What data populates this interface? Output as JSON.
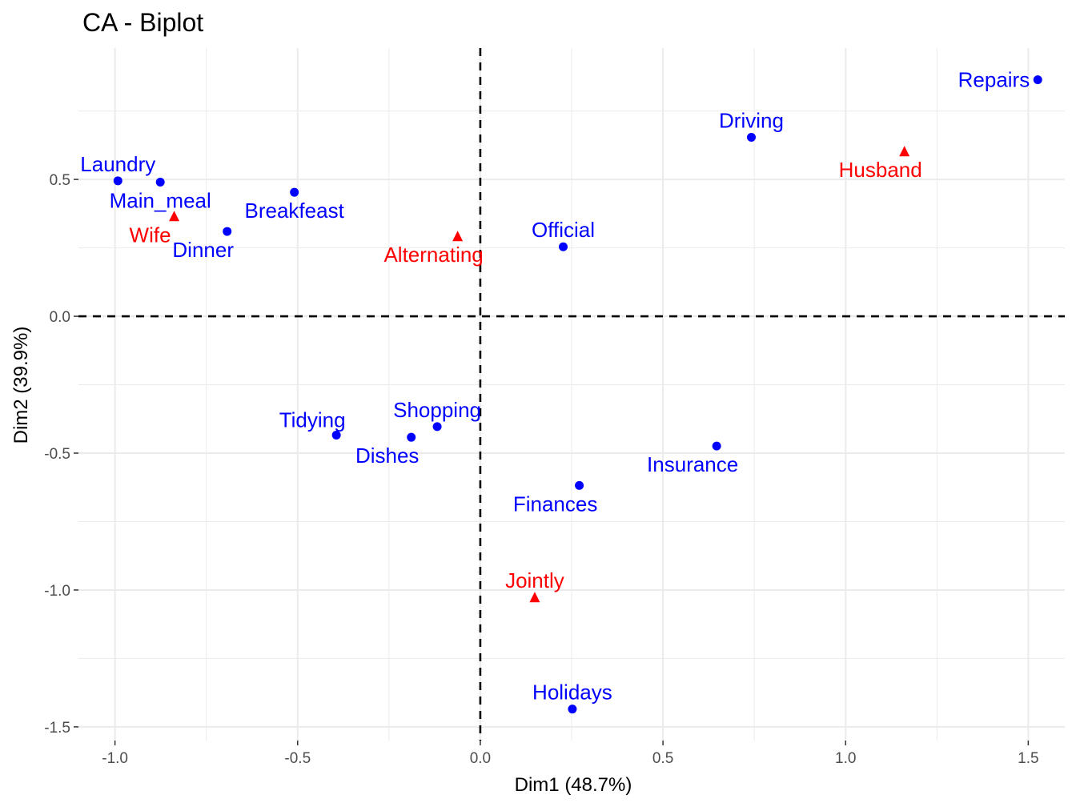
{
  "chart_data": {
    "type": "scatter",
    "title": "CA - Biplot",
    "xlabel": "Dim1 (48.7%)",
    "ylabel": "Dim2 (39.9%)",
    "xlim": [
      -1.1,
      1.6
    ],
    "ylim": [
      -1.55,
      0.98
    ],
    "x_ticks": [
      -1.0,
      -0.5,
      0.0,
      0.5,
      1.0,
      1.5
    ],
    "x_tick_labels": [
      "-1.0",
      "-0.5",
      "0.0",
      "0.5",
      "1.0",
      "1.5"
    ],
    "y_ticks": [
      -1.5,
      -1.0,
      -0.5,
      0.0,
      0.5
    ],
    "y_tick_labels": [
      "-1.5",
      "-1.0",
      "-0.5",
      "0.0",
      "0.5"
    ],
    "grid": true,
    "reference_lines": {
      "x": 0,
      "y": 0,
      "style": "dashed"
    },
    "series": [
      {
        "marker": "circle",
        "color": "#0000ff",
        "points": [
          {
            "label": "Laundry",
            "x": -0.992,
            "y": 0.495,
            "label_pos": "top"
          },
          {
            "label": "Main_meal",
            "x": -0.876,
            "y": 0.49,
            "label_pos": "bottom"
          },
          {
            "label": "Dinner",
            "x": -0.693,
            "y": 0.31,
            "label_pos": "bottom-left"
          },
          {
            "label": "Breakfeast",
            "x": -0.509,
            "y": 0.453,
            "label_pos": "bottom"
          },
          {
            "label": "Tidying",
            "x": -0.394,
            "y": -0.434,
            "label_pos": "top-left"
          },
          {
            "label": "Dishes",
            "x": -0.189,
            "y": -0.442,
            "label_pos": "bottom-left"
          },
          {
            "label": "Shopping",
            "x": -0.118,
            "y": -0.403,
            "label_pos": "top"
          },
          {
            "label": "Official",
            "x": 0.227,
            "y": 0.254,
            "label_pos": "top"
          },
          {
            "label": "Driving",
            "x": 0.742,
            "y": 0.654,
            "label_pos": "top"
          },
          {
            "label": "Finances",
            "x": 0.271,
            "y": -0.618,
            "label_pos": "bottom-left"
          },
          {
            "label": "Insurance",
            "x": 0.647,
            "y": -0.474,
            "label_pos": "bottom-left"
          },
          {
            "label": "Repairs",
            "x": 1.526,
            "y": 0.864,
            "label_pos": "left"
          },
          {
            "label": "Holidays",
            "x": 0.252,
            "y": -1.435,
            "label_pos": "top"
          }
        ]
      },
      {
        "marker": "triangle",
        "color": "#ff0000",
        "points": [
          {
            "label": "Wife",
            "x": -0.838,
            "y": 0.365,
            "label_pos": "bottom-left"
          },
          {
            "label": "Alternating",
            "x": -0.062,
            "y": 0.292,
            "label_pos": "bottom-left"
          },
          {
            "label": "Husband",
            "x": 1.161,
            "y": 0.602,
            "label_pos": "bottom-left"
          },
          {
            "label": "Jointly",
            "x": 0.149,
            "y": -1.027,
            "label_pos": "top"
          }
        ]
      }
    ]
  }
}
